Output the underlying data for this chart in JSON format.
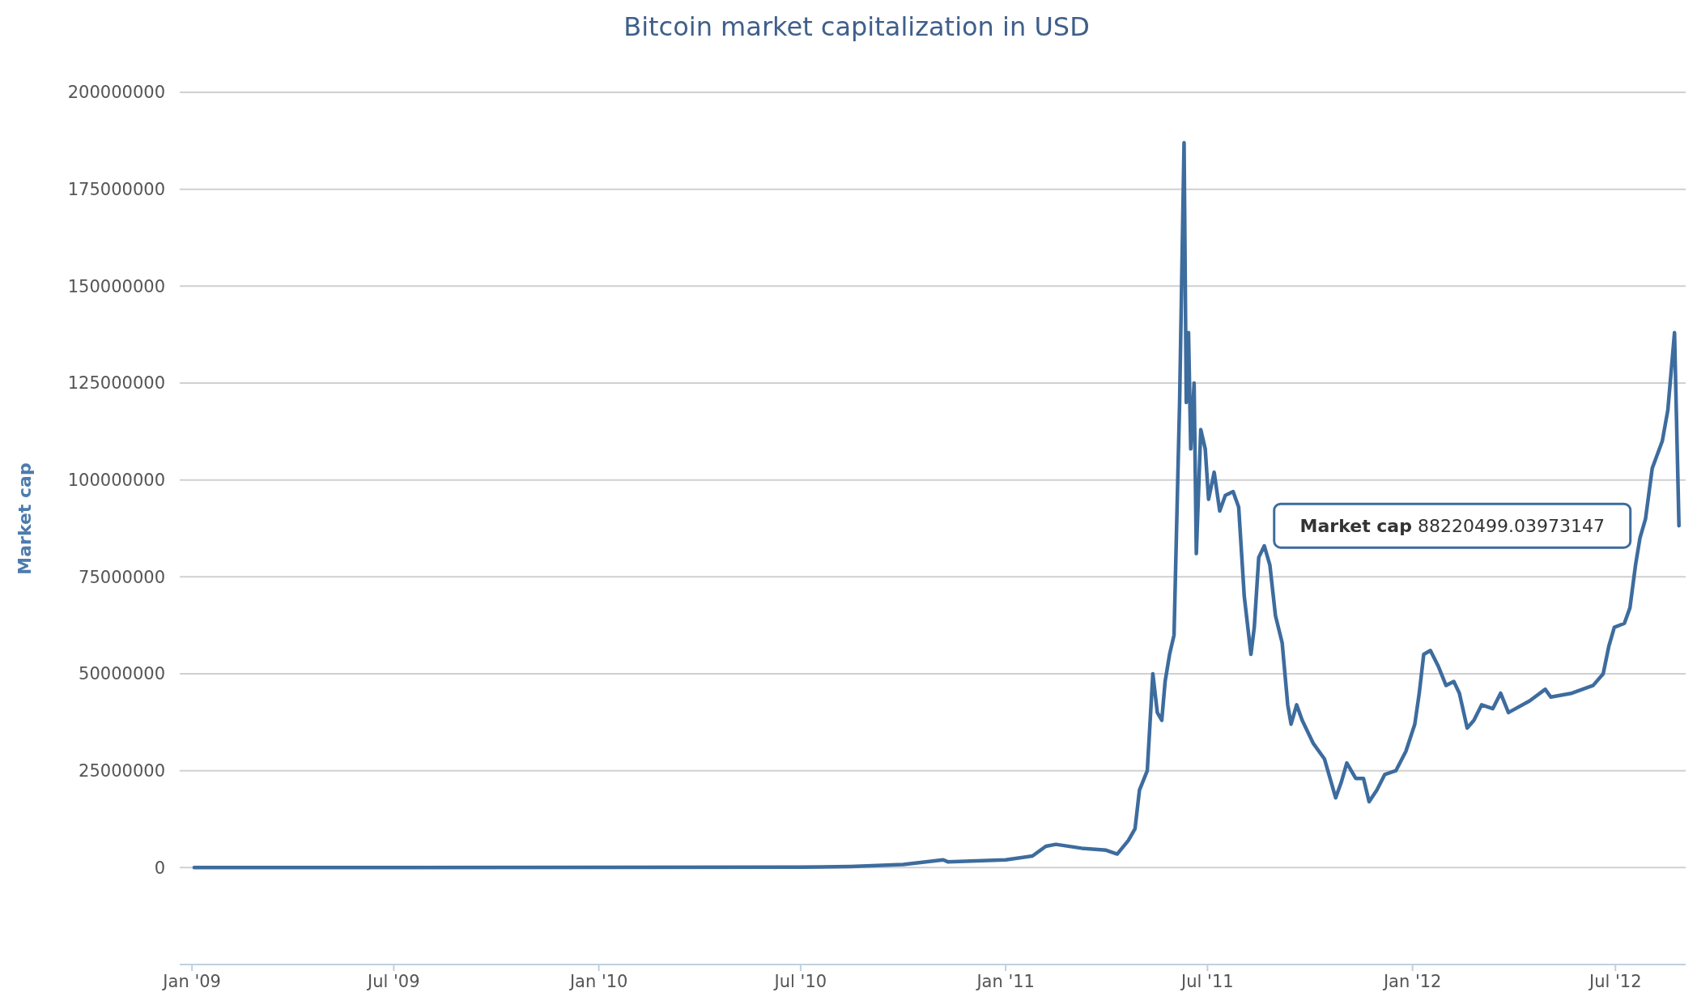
{
  "chart_data": {
    "type": "line",
    "title": "Bitcoin market capitalization in USD",
    "ylabel": "Market cap",
    "x": [
      "2009-01-03",
      "2010-07-01",
      "2010-08-15",
      "2010-10-01",
      "2010-11-06",
      "2010-11-10",
      "2011-01-01",
      "2011-01-25",
      "2011-02-06",
      "2011-02-15",
      "2011-03-10",
      "2011-04-01",
      "2011-04-11",
      "2011-04-21",
      "2011-04-27",
      "2011-05-01",
      "2011-05-08",
      "2011-05-13",
      "2011-05-17",
      "2011-05-21",
      "2011-05-24",
      "2011-05-28",
      "2011-06-01",
      "2011-06-06",
      "2011-06-10",
      "2011-06-12",
      "2011-06-14",
      "2011-06-16",
      "2011-06-19",
      "2011-06-21",
      "2011-06-25",
      "2011-06-29",
      "2011-07-02",
      "2011-07-07",
      "2011-07-12",
      "2011-07-17",
      "2011-07-24",
      "2011-07-29",
      "2011-08-03",
      "2011-08-09",
      "2011-08-12",
      "2011-08-16",
      "2011-08-21",
      "2011-08-26",
      "2011-08-31",
      "2011-09-06",
      "2011-09-11",
      "2011-09-14",
      "2011-09-19",
      "2011-09-24",
      "2011-10-04",
      "2011-10-14",
      "2011-10-24",
      "2011-10-29",
      "2011-11-03",
      "2011-11-11",
      "2011-11-18",
      "2011-11-23",
      "2011-11-30",
      "2011-12-07",
      "2011-12-17",
      "2011-12-26",
      "2012-01-03",
      "2012-01-07",
      "2012-01-11",
      "2012-01-17",
      "2012-01-24",
      "2012-01-31",
      "2012-02-07",
      "2012-02-12",
      "2012-02-19",
      "2012-02-25",
      "2012-03-03",
      "2012-03-13",
      "2012-03-20",
      "2012-03-27",
      "2012-04-15",
      "2012-04-29",
      "2012-05-04",
      "2012-05-23",
      "2012-06-11",
      "2012-06-20",
      "2012-06-25",
      "2012-06-30",
      "2012-07-09",
      "2012-07-14",
      "2012-07-19",
      "2012-07-23",
      "2012-07-28",
      "2012-08-03",
      "2012-08-12",
      "2012-08-17",
      "2012-08-23",
      "2012-08-27"
    ],
    "series": [
      {
        "color": "#3d6c9e",
        "values": [
          0,
          100000,
          300000,
          800000,
          2000000,
          1500000,
          2000000,
          3000000,
          5500000,
          6000000,
          5000000,
          4500000,
          3500000,
          7000000,
          10000000,
          20000000,
          25000000,
          50000000,
          40000000,
          38000000,
          48000000,
          55000000,
          60000000,
          120000000,
          187000000,
          120000000,
          138000000,
          108000000,
          125000000,
          81000000,
          113000000,
          108000000,
          95000000,
          102000000,
          92000000,
          96000000,
          97000000,
          93000000,
          70000000,
          55000000,
          62000000,
          80000000,
          83000000,
          78000000,
          65000000,
          58000000,
          42000000,
          37000000,
          42000000,
          38000000,
          32000000,
          28000000,
          18000000,
          22000000,
          27000000,
          23000000,
          23000000,
          17000000,
          20000000,
          24000000,
          25000000,
          30000000,
          37000000,
          45000000,
          55000000,
          56000000,
          52000000,
          47000000,
          48000000,
          45000000,
          36000000,
          38000000,
          42000000,
          41000000,
          45000000,
          40000000,
          43000000,
          46000000,
          44000000,
          45000000,
          47000000,
          50000000,
          57000000,
          62000000,
          63000000,
          67000000,
          78000000,
          85000000,
          90000000,
          103000000,
          110000000,
          118000000,
          138000000,
          88200000
        ]
      }
    ],
    "xlim": [
      "2008-12-21",
      "2012-09-02"
    ],
    "xticks": [
      {
        "value": "2009-01-01",
        "label": "Jan '09"
      },
      {
        "value": "2009-07-01",
        "label": "Jul '09"
      },
      {
        "value": "2010-01-01",
        "label": "Jan '10"
      },
      {
        "value": "2010-07-01",
        "label": "Jul '10"
      },
      {
        "value": "2011-01-01",
        "label": "Jan '11"
      },
      {
        "value": "2011-07-01",
        "label": "Jul '11"
      },
      {
        "value": "2012-01-01",
        "label": "Jan '12"
      },
      {
        "value": "2012-07-01",
        "label": "Jul '12"
      }
    ],
    "ylim": [
      -25000000,
      200000000
    ],
    "yticks": [
      0,
      25000000,
      50000000,
      75000000,
      100000000,
      125000000,
      150000000,
      175000000,
      200000000
    ],
    "grid": "y",
    "annotations": [
      "Market cap 88220499.03973147"
    ]
  }
}
